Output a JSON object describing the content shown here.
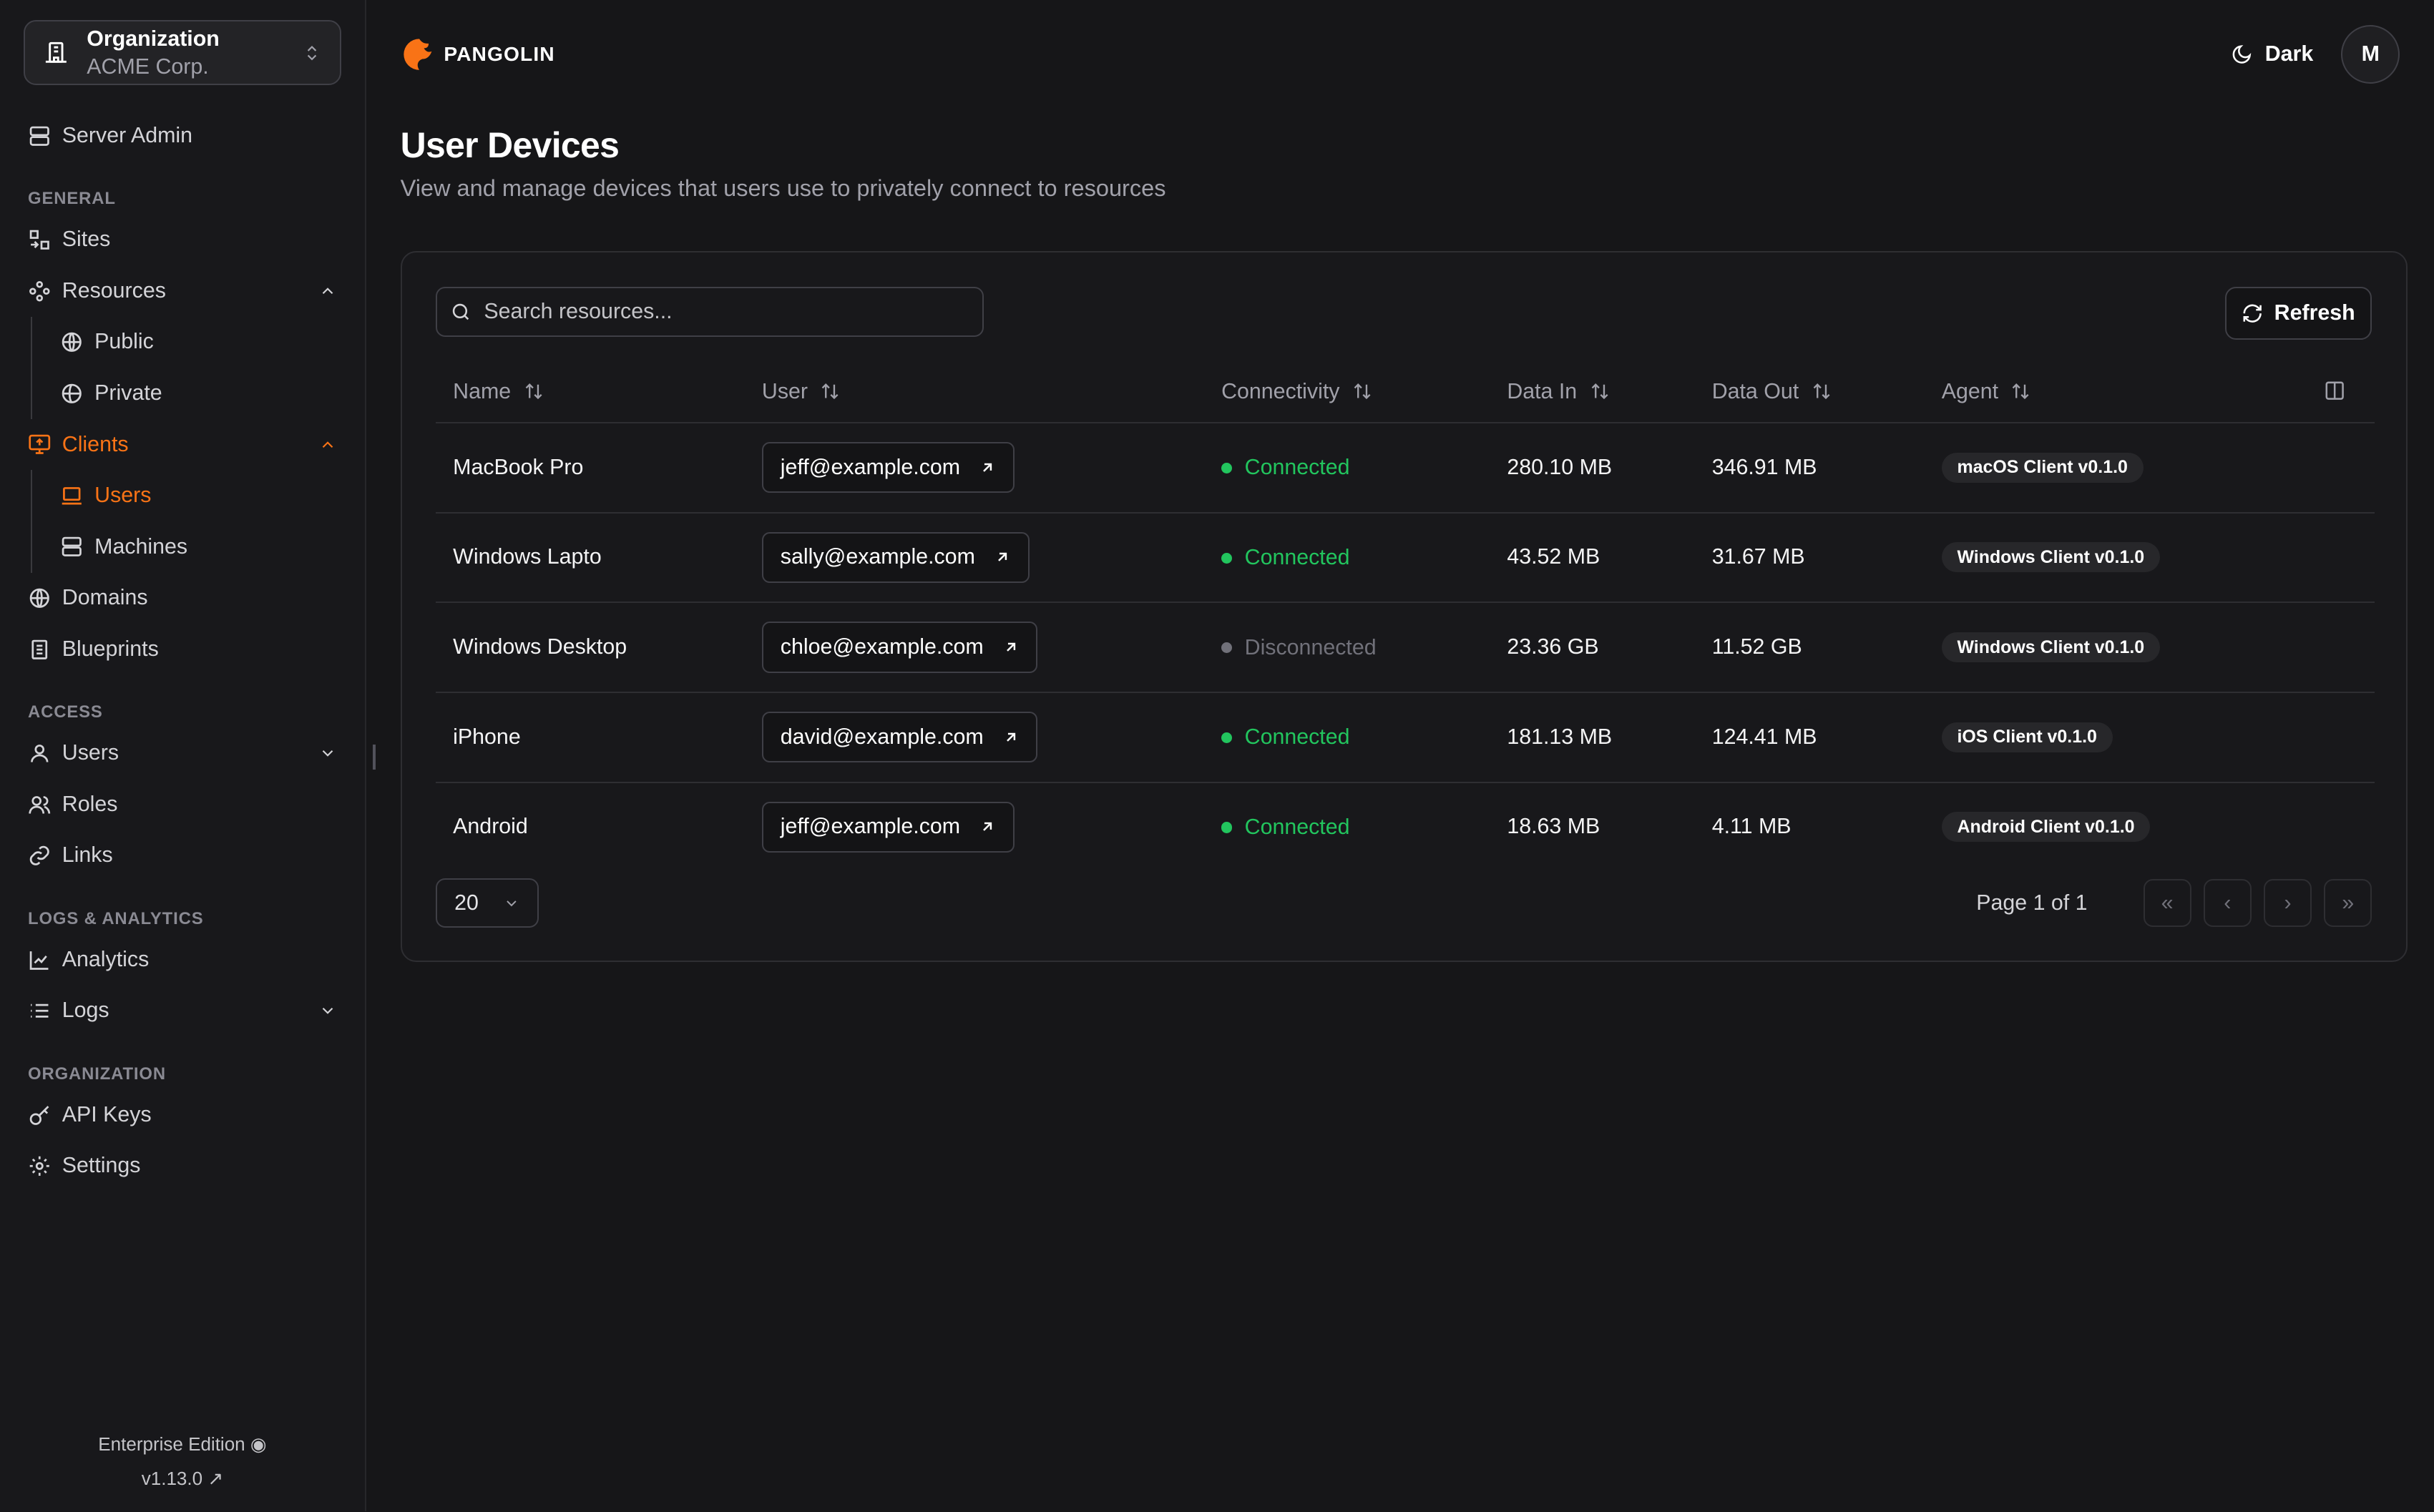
{
  "org": {
    "label": "Organization",
    "name": "ACME Corp."
  },
  "sidebar": {
    "server_admin": "Server Admin",
    "sections": {
      "general": "GENERAL",
      "access": "ACCESS",
      "logs": "LOGS & ANALYTICS",
      "organization": "ORGANIZATION"
    },
    "items": {
      "sites": "Sites",
      "resources": "Resources",
      "public": "Public",
      "private": "Private",
      "clients": "Clients",
      "users": "Users",
      "machines": "Machines",
      "domains": "Domains",
      "blueprints": "Blueprints",
      "access_users": "Users",
      "roles": "Roles",
      "links": "Links",
      "analytics": "Analytics",
      "logs": "Logs",
      "api_keys": "API Keys",
      "settings": "Settings"
    },
    "footer": {
      "edition": "Enterprise Edition",
      "version": "v1.13.0"
    }
  },
  "header": {
    "brand": "PANGOLIN",
    "theme": "Dark",
    "avatar": "M"
  },
  "page": {
    "title": "User Devices",
    "description": "View and manage devices that users use to privately connect to resources"
  },
  "toolbar": {
    "search_placeholder": "Search resources...",
    "refresh": "Refresh"
  },
  "table": {
    "columns": [
      "Name",
      "User",
      "Connectivity",
      "Data In",
      "Data Out",
      "Agent"
    ],
    "rows": [
      {
        "name": "MacBook Pro",
        "user": "jeff@example.com",
        "status": "Connected",
        "data_in": "280.10 MB",
        "data_out": "346.91 MB",
        "agent": "macOS Client v0.1.0"
      },
      {
        "name": "Windows Lapto",
        "user": "sally@example.com",
        "status": "Connected",
        "data_in": "43.52 MB",
        "data_out": "31.67 MB",
        "agent": "Windows Client v0.1.0"
      },
      {
        "name": "Windows Desktop",
        "user": "chloe@example.com",
        "status": "Disconnected",
        "data_in": "23.36 GB",
        "data_out": "11.52 GB",
        "agent": "Windows Client v0.1.0"
      },
      {
        "name": "iPhone",
        "user": "david@example.com",
        "status": "Connected",
        "data_in": "181.13 MB",
        "data_out": "124.41 MB",
        "agent": "iOS Client v0.1.0"
      },
      {
        "name": "Android",
        "user": "jeff@example.com",
        "status": "Connected",
        "data_in": "18.63 MB",
        "data_out": "4.11 MB",
        "agent": "Android Client v0.1.0"
      }
    ]
  },
  "pagination": {
    "page_size": "20",
    "page_label": "Page 1 of 1"
  },
  "colors": {
    "accent": "#f97316",
    "connected": "#22c55e",
    "disconnected": "#71717a"
  }
}
